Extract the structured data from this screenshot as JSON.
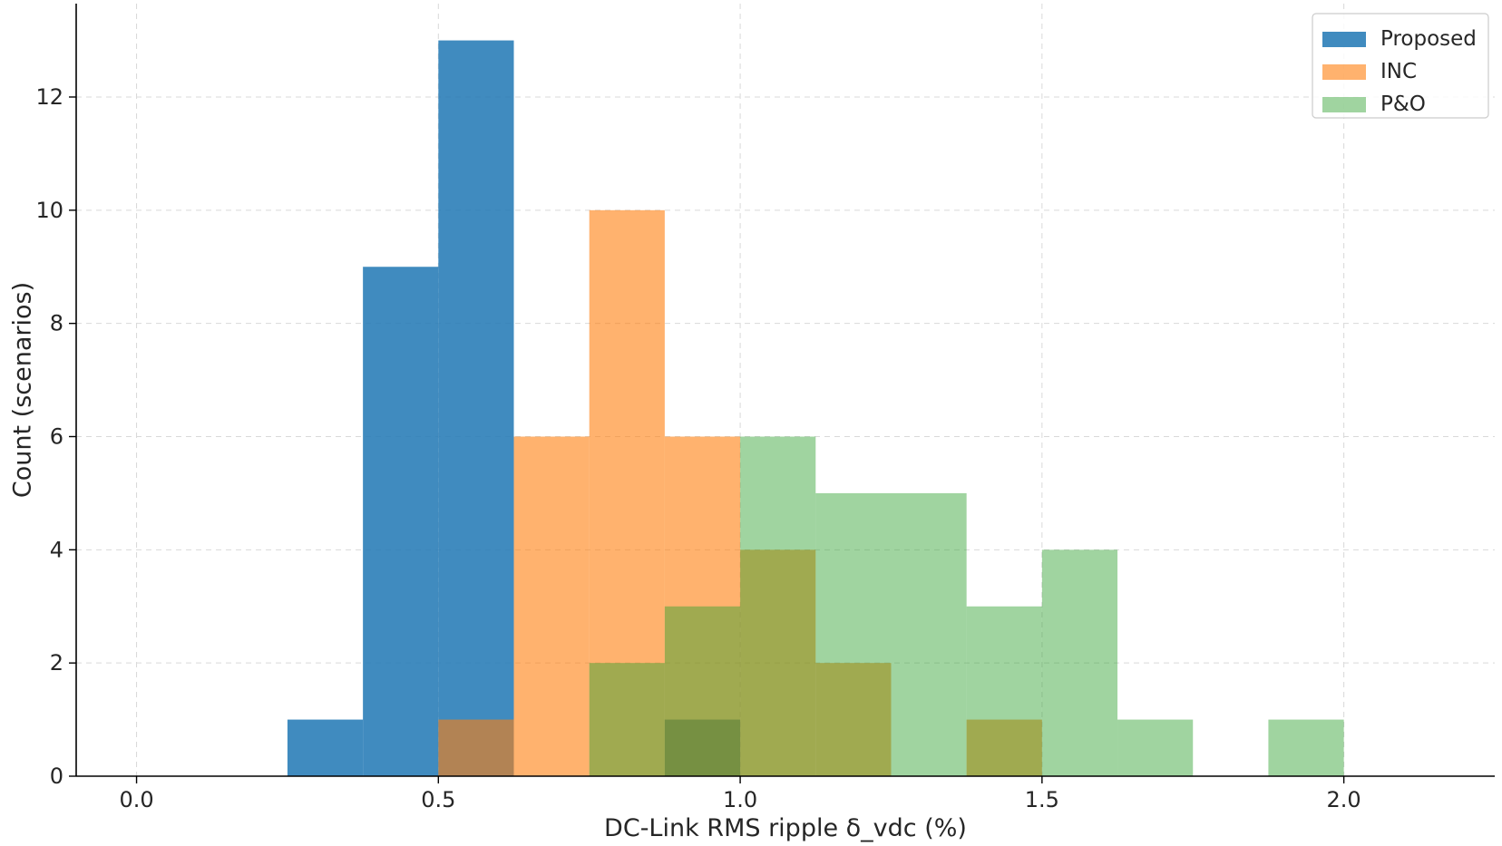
{
  "chart_data": {
    "type": "bar",
    "subtype": "overlaid-histogram",
    "title": "",
    "xlabel": "DC-Link RMS ripple δ_vdc (%)",
    "ylabel": "Count (scenarios)",
    "xlim": [
      -0.1,
      2.25
    ],
    "ylim": [
      0,
      13.65
    ],
    "xticks": [
      0.0,
      0.5,
      1.0,
      1.5,
      2.0
    ],
    "xtick_labels": [
      "0.0",
      "0.5",
      "1.0",
      "1.5",
      "2.0"
    ],
    "yticks": [
      0,
      2,
      4,
      6,
      8,
      10,
      12
    ],
    "ytick_labels": [
      "0",
      "2",
      "4",
      "6",
      "8",
      "10",
      "12"
    ],
    "grid": true,
    "legend_position": "top-right",
    "bin_edges": [
      0.0,
      0.125,
      0.25,
      0.375,
      0.5,
      0.625,
      0.75,
      0.875,
      1.0,
      1.125,
      1.25,
      1.375,
      1.5,
      1.625,
      1.75,
      1.875,
      2.0
    ],
    "series": [
      {
        "name": "Proposed",
        "color": "#1f77b4",
        "opacity": 0.85,
        "values": [
          0,
          0,
          1,
          9,
          13,
          0,
          0,
          1,
          0,
          0,
          0,
          0,
          0,
          0,
          0,
          0
        ]
      },
      {
        "name": "INC",
        "color": "#ff7f0e",
        "opacity": 0.6,
        "values": [
          0,
          0,
          0,
          0,
          1,
          6,
          10,
          6,
          4,
          2,
          0,
          1,
          0,
          0,
          0,
          0
        ]
      },
      {
        "name": "P&O",
        "color": "#2ca02c",
        "opacity": 0.45,
        "values": [
          0,
          0,
          0,
          0,
          0,
          0,
          2,
          3,
          6,
          5,
          5,
          3,
          4,
          1,
          0,
          1
        ]
      }
    ]
  }
}
